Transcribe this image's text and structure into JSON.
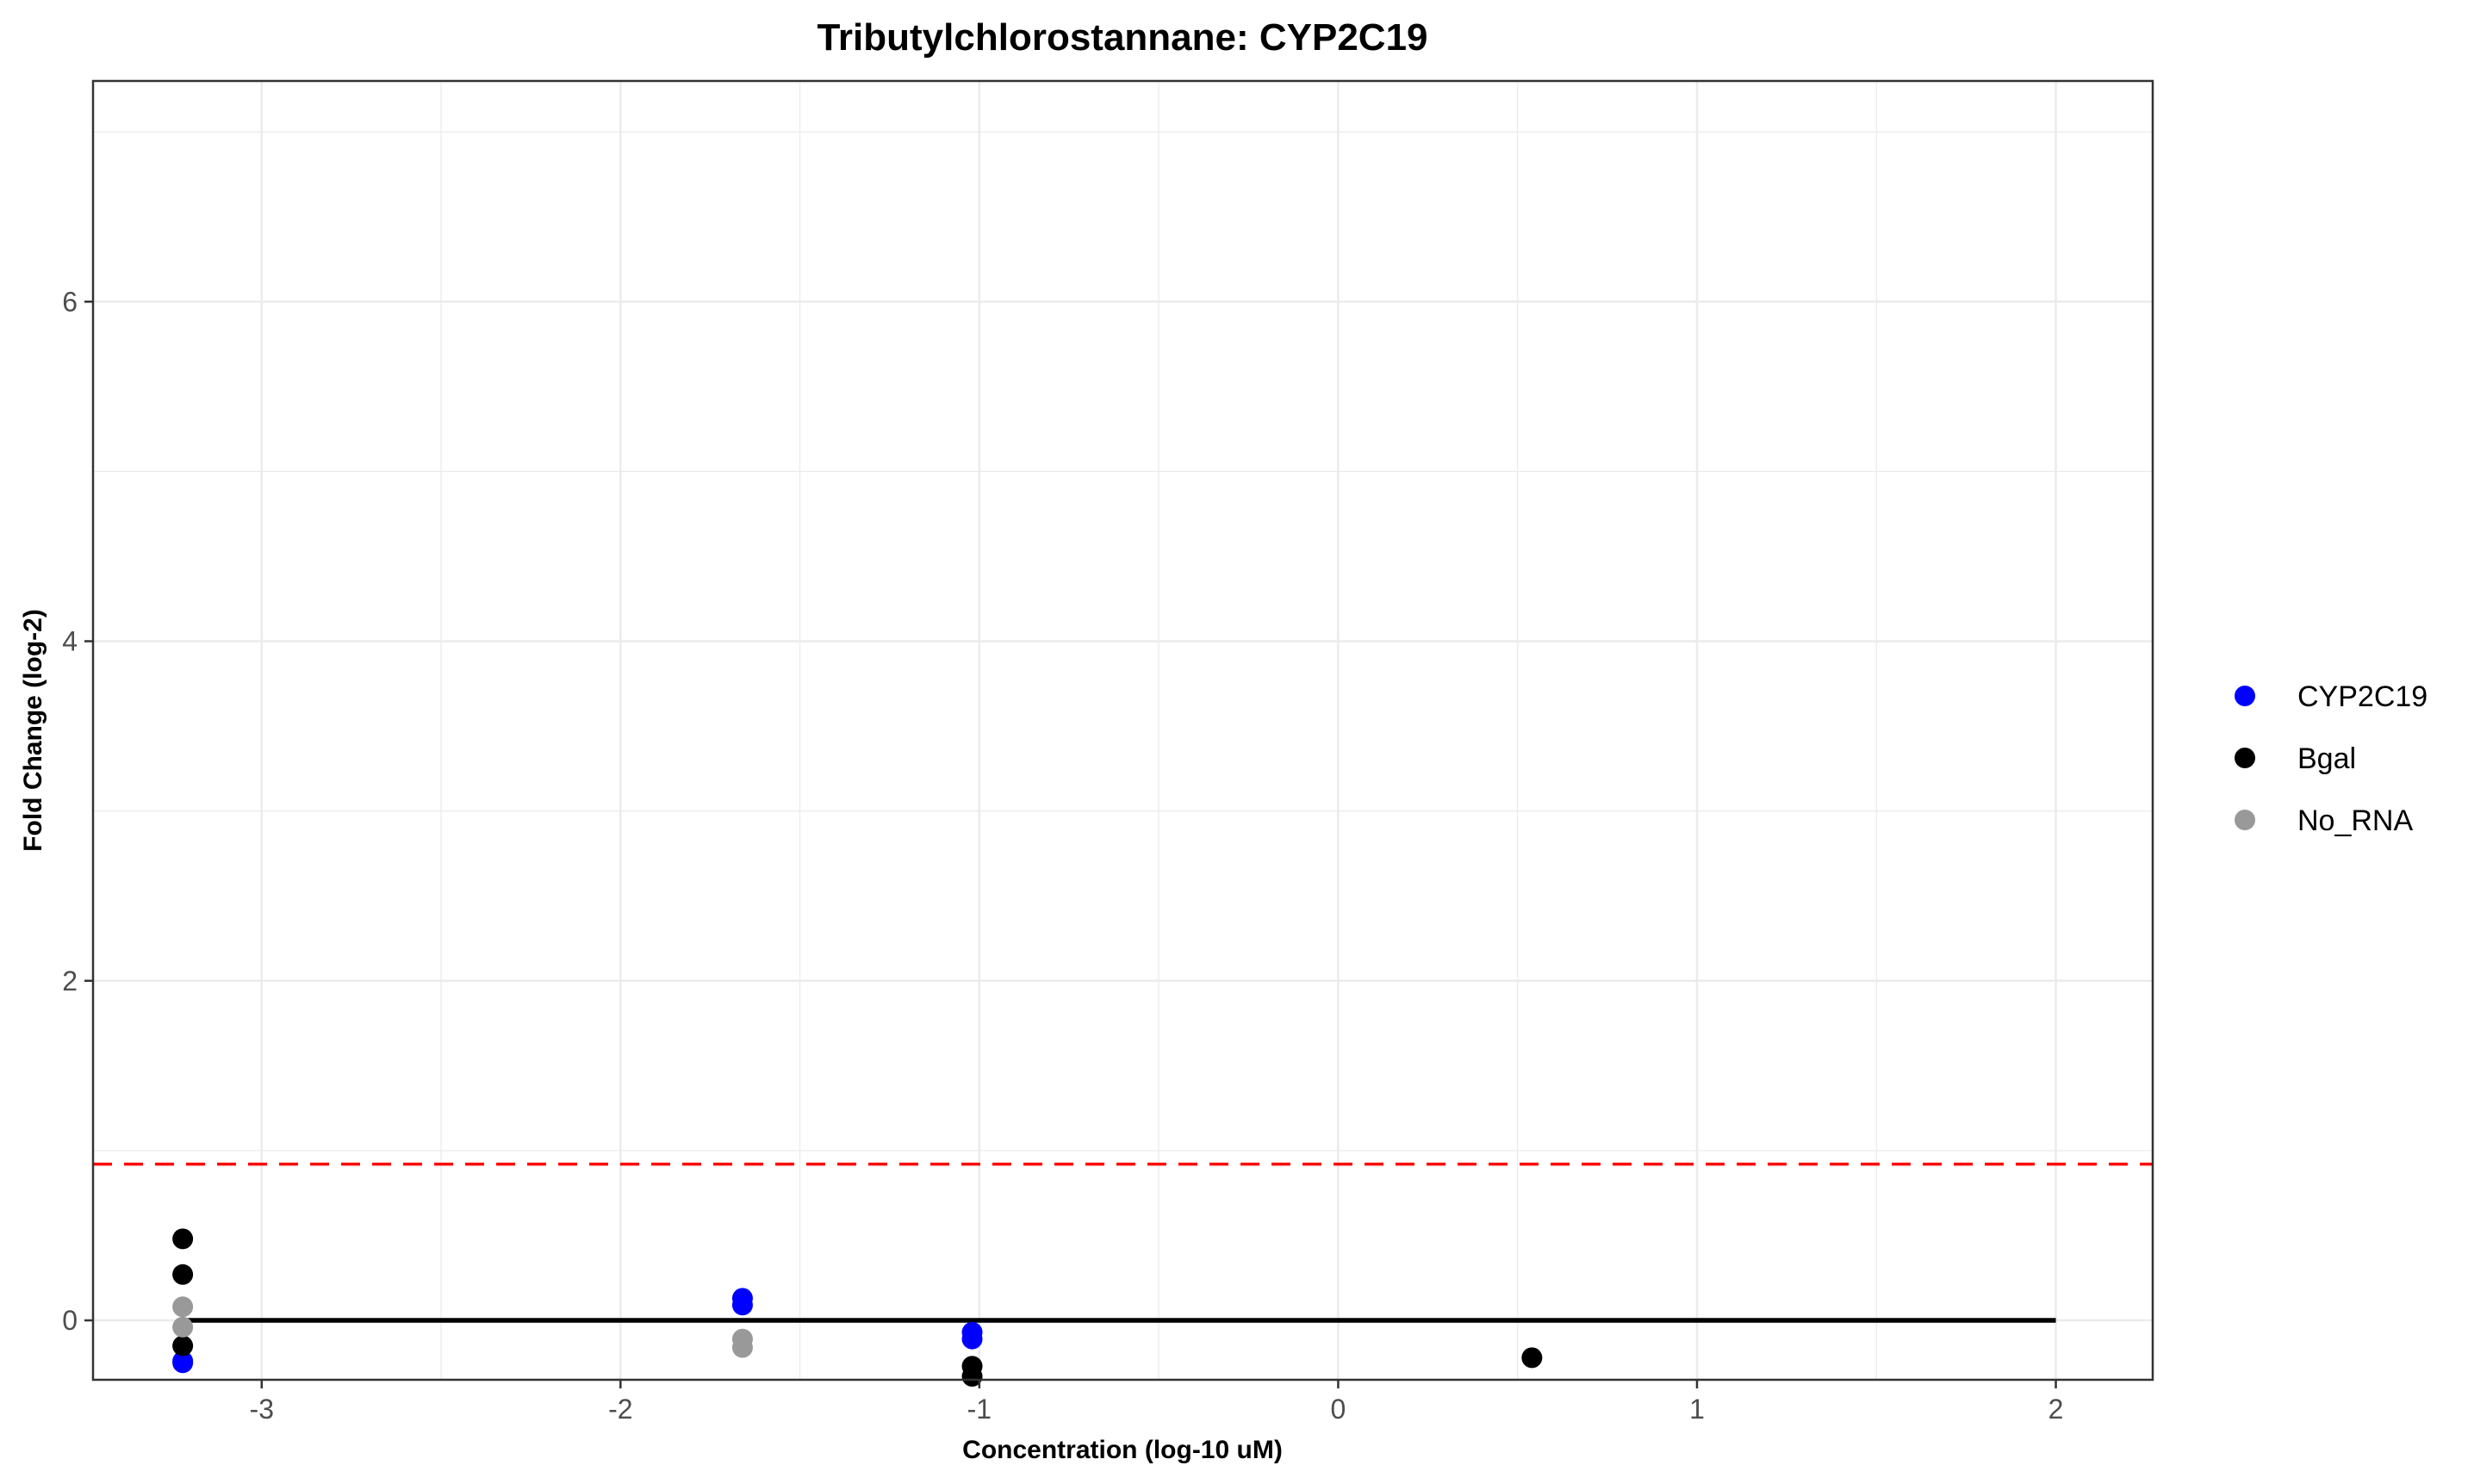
{
  "chart_data": {
    "type": "scatter",
    "title": "Tributylchlorostannane: CYP2C19",
    "xlabel": "Concentration (log-10 uM)",
    "ylabel": "Fold Change (log-2)",
    "xlim": [
      -3.47,
      2.27
    ],
    "ylim": [
      -0.35,
      7.3
    ],
    "x_ticks": [
      -3,
      -2,
      -1,
      0,
      1,
      2
    ],
    "x_tick_labels": [
      "-3",
      "-2",
      "-1",
      "0",
      "1",
      "2"
    ],
    "y_ticks": [
      0,
      2,
      4,
      6
    ],
    "y_tick_labels": [
      "0",
      "2",
      "4",
      "6"
    ],
    "grid": true,
    "legend_position": "right",
    "series": [
      {
        "name": "CYP2C19",
        "color": "#0000ff",
        "points": [
          {
            "x": -3.22,
            "y": -0.25
          },
          {
            "x": -3.22,
            "y": -0.24
          },
          {
            "x": -1.66,
            "y": 0.13
          },
          {
            "x": -1.66,
            "y": 0.09
          },
          {
            "x": -1.02,
            "y": -0.07
          },
          {
            "x": -1.02,
            "y": -0.11
          }
        ]
      },
      {
        "name": "Bgal",
        "color": "#000000",
        "points": [
          {
            "x": -3.22,
            "y": 0.48
          },
          {
            "x": -3.22,
            "y": 0.27
          },
          {
            "x": -3.22,
            "y": -0.15
          },
          {
            "x": -1.02,
            "y": -0.27
          },
          {
            "x": -1.02,
            "y": -0.33
          },
          {
            "x": 0.54,
            "y": -0.22
          }
        ]
      },
      {
        "name": "No_RNA",
        "color": "#999999",
        "points": [
          {
            "x": -3.22,
            "y": 0.08
          },
          {
            "x": -3.22,
            "y": -0.04
          },
          {
            "x": -1.66,
            "y": -0.11
          },
          {
            "x": -1.66,
            "y": -0.16
          }
        ]
      }
    ],
    "reference_lines": [
      {
        "orientation": "horizontal",
        "y": 0.92,
        "style": "dashed",
        "color": "#ff0000"
      },
      {
        "orientation": "horizontal",
        "y": 0,
        "x_from": -3.22,
        "x_to": 2,
        "style": "solid",
        "color": "#000000"
      }
    ]
  }
}
